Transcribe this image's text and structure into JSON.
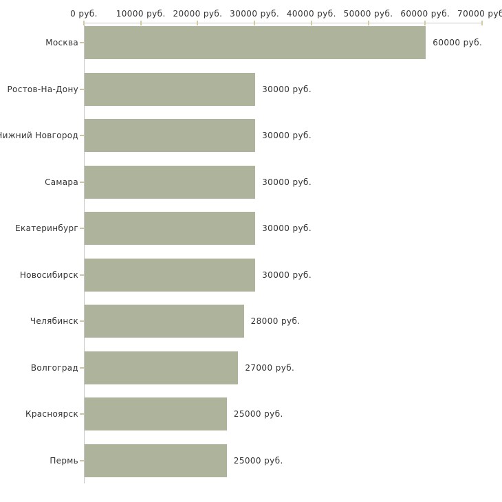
{
  "chart_data": {
    "type": "bar",
    "orientation": "horizontal",
    "title": "",
    "categories": [
      "Москва",
      "Ростов-На-Дону",
      "Нижний Новгород",
      "Самара",
      "Екатеринбург",
      "Новосибирск",
      "Челябинск",
      "Волгоград",
      "Красноярск",
      "Пермь"
    ],
    "values": [
      60000,
      30000,
      30000,
      30000,
      30000,
      30000,
      28000,
      27000,
      25000,
      25000
    ],
    "value_labels": [
      "60000 руб.",
      "30000 руб.",
      "30000 руб.",
      "30000 руб.",
      "30000 руб.",
      "30000 руб.",
      "28000 руб.",
      "27000 руб.",
      "25000 руб.",
      "25000 руб."
    ],
    "x_axis": {
      "position": "top",
      "min": 0,
      "max": 70000,
      "ticks": [
        0,
        10000,
        20000,
        30000,
        40000,
        50000,
        60000,
        70000
      ],
      "tick_labels": [
        "0 руб.",
        "10000 руб.",
        "20000 руб.",
        "30000 руб.",
        "40000 руб.",
        "50000 руб.",
        "60000 руб.",
        "70000 руб."
      ]
    },
    "grid": false,
    "legend": false,
    "colors": {
      "bar": "#aeb39b",
      "axis_line": "#c6c6c6",
      "tick_mark": "#d2cda1",
      "category_tick": "#c9c5a0",
      "text": "#333333",
      "background": "#ffffff"
    }
  }
}
